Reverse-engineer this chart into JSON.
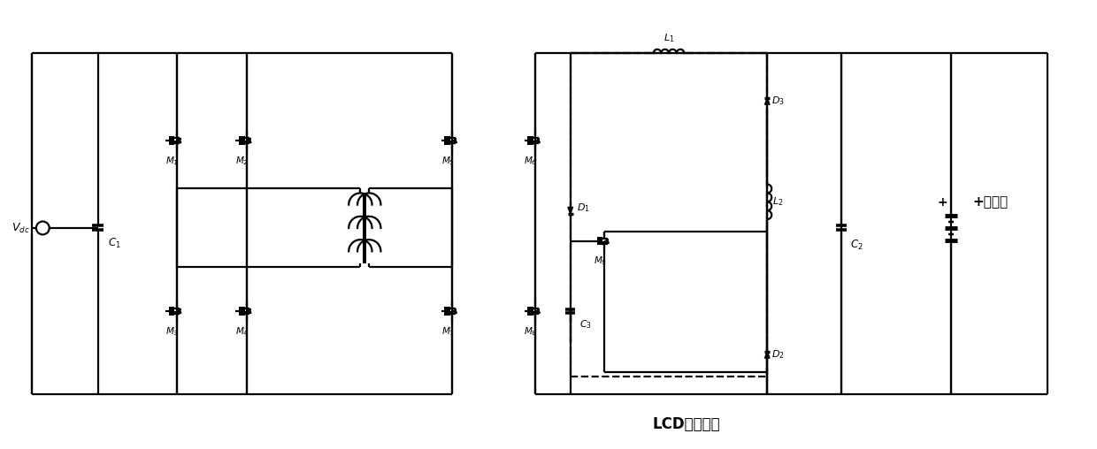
{
  "bg_color": "#ffffff",
  "line_color": "#000000",
  "lw": 1.6,
  "lcd_label": "LCD吸收回路",
  "battery_label": "+蓄电池",
  "vdc_label": "V_{dc}"
}
